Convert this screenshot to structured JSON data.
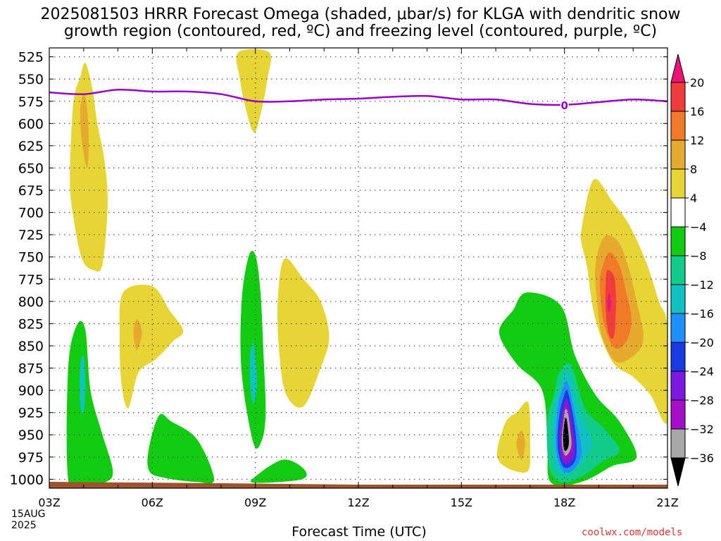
{
  "header": {
    "title_line_1": "2025081503 HRRR Forecast Omega (shaded, μbar/s) for KLGA with dendritic snow",
    "title_line_2": "growth region (contoured, red, ºC) and freezing level (contoured, purple, ºC)"
  },
  "footer": {
    "xlabel": "Forecast Time (UTC)",
    "date_line_1": "15AUG",
    "date_line_2": "2025",
    "credit": "coolwx.com/models"
  },
  "colors": {
    "freezing_level": "#9900cc",
    "ground": "#a0522d",
    "grid": "#555555"
  },
  "chart_data": {
    "type": "heatmap",
    "title": "2025081503 HRRR Forecast Omega (shaded, μbar/s) for KLGA with dendritic snow growth region (contoured, red, ºC) and freezing level (contoured, purple, ºC)",
    "xlabel": "Forecast Time (UTC)",
    "ylabel": "",
    "x_ticks": [
      "03Z",
      "06Z",
      "09Z",
      "12Z",
      "15Z",
      "18Z",
      "21Z"
    ],
    "x_range_hours": [
      3,
      21
    ],
    "y_ticks": [
      525,
      550,
      575,
      600,
      625,
      650,
      675,
      700,
      725,
      750,
      775,
      800,
      825,
      850,
      875,
      900,
      925,
      950,
      975,
      1000
    ],
    "y_range_hpa": [
      515,
      1010
    ],
    "grid": true,
    "colorbar": {
      "labels": [
        20,
        16,
        12,
        8,
        4,
        -4,
        -8,
        -12,
        -16,
        -20,
        -24,
        -28,
        -32,
        -36
      ],
      "bins": [
        {
          "color": "#ee1177"
        },
        {
          "color": "#f03c3c"
        },
        {
          "color": "#f07a28"
        },
        {
          "color": "#e6aa2e"
        },
        {
          "color": "#e6d535"
        },
        {
          "color": "#ffffff"
        },
        {
          "color": "#11cc11"
        },
        {
          "color": "#11cc8a"
        },
        {
          "color": "#11c2c2"
        },
        {
          "color": "#1e90ff"
        },
        {
          "color": "#1a3ae6"
        },
        {
          "color": "#7a1ae0"
        },
        {
          "color": "#a50fc8"
        },
        {
          "color": "#a8a8a8"
        },
        {
          "color": "#000000"
        }
      ]
    },
    "freezing_level": {
      "contour_label": "0",
      "label_at": {
        "hour": 18,
        "hpa": 579
      },
      "points": [
        {
          "hour": 3.0,
          "hpa": 565
        },
        {
          "hour": 4.0,
          "hpa": 567
        },
        {
          "hour": 5.0,
          "hpa": 562
        },
        {
          "hour": 6.0,
          "hpa": 564
        },
        {
          "hour": 7.0,
          "hpa": 564
        },
        {
          "hour": 8.0,
          "hpa": 567
        },
        {
          "hour": 9.0,
          "hpa": 575
        },
        {
          "hour": 10.0,
          "hpa": 575
        },
        {
          "hour": 11.0,
          "hpa": 573
        },
        {
          "hour": 12.0,
          "hpa": 572
        },
        {
          "hour": 13.0,
          "hpa": 570
        },
        {
          "hour": 14.0,
          "hpa": 569
        },
        {
          "hour": 15.0,
          "hpa": 573
        },
        {
          "hour": 16.0,
          "hpa": 573
        },
        {
          "hour": 17.0,
          "hpa": 578
        },
        {
          "hour": 18.0,
          "hpa": 579
        },
        {
          "hour": 19.0,
          "hpa": 576
        },
        {
          "hour": 20.0,
          "hpa": 573
        },
        {
          "hour": 21.0,
          "hpa": 575
        }
      ]
    },
    "omega_regions": [
      {
        "level": 4,
        "color": "#e6d535",
        "points": [
          [
            3.6,
            662
          ],
          [
            3.7,
            577
          ],
          [
            3.9,
            548
          ],
          [
            4.05,
            532
          ],
          [
            4.25,
            560
          ],
          [
            4.4,
            600
          ],
          [
            4.6,
            640
          ],
          [
            4.7,
            690
          ],
          [
            4.55,
            758
          ],
          [
            4.3,
            765
          ],
          [
            3.95,
            752
          ],
          [
            3.7,
            705
          ]
        ]
      },
      {
        "level": 8,
        "color": "#e6aa2e",
        "points": [
          [
            4.0,
            567
          ],
          [
            4.1,
            582
          ],
          [
            4.15,
            620
          ],
          [
            4.1,
            650
          ],
          [
            3.95,
            620
          ],
          [
            3.9,
            585
          ]
        ]
      },
      {
        "level": 4,
        "color": "#e6d535",
        "points": [
          [
            8.5,
            520
          ],
          [
            9.4,
            520
          ],
          [
            9.35,
            550
          ],
          [
            9.15,
            590
          ],
          [
            8.95,
            610
          ],
          [
            8.7,
            580
          ],
          [
            8.55,
            550
          ]
        ]
      },
      {
        "level": 4,
        "color": "#e6d535",
        "points": [
          [
            5.15,
            790
          ],
          [
            6.0,
            783
          ],
          [
            6.5,
            810
          ],
          [
            6.9,
            833
          ],
          [
            6.6,
            845
          ],
          [
            6.1,
            865
          ],
          [
            5.6,
            880
          ],
          [
            5.3,
            920
          ],
          [
            5.1,
            892
          ],
          [
            5.05,
            840
          ]
        ]
      },
      {
        "level": 8,
        "color": "#e6aa2e",
        "points": [
          [
            5.55,
            820
          ],
          [
            5.7,
            835
          ],
          [
            5.55,
            855
          ],
          [
            5.45,
            835
          ]
        ]
      },
      {
        "level": 4,
        "color": "#e6d535",
        "points": [
          [
            9.85,
            752
          ],
          [
            10.4,
            775
          ],
          [
            10.9,
            800
          ],
          [
            11.15,
            840
          ],
          [
            10.9,
            875
          ],
          [
            10.4,
            918
          ],
          [
            9.9,
            905
          ],
          [
            9.7,
            860
          ],
          [
            9.65,
            800
          ]
        ]
      },
      {
        "level": -4,
        "color": "#11cc11",
        "points": [
          [
            3.55,
            875
          ],
          [
            3.8,
            827
          ],
          [
            4.05,
            832
          ],
          [
            4.2,
            900
          ],
          [
            4.55,
            950
          ],
          [
            4.85,
            990
          ],
          [
            4.65,
            1003
          ],
          [
            4.0,
            1005
          ],
          [
            3.55,
            1000
          ]
        ]
      },
      {
        "level": -12,
        "color": "#11c2c2",
        "points": [
          [
            3.9,
            872
          ],
          [
            4.0,
            862
          ],
          [
            4.05,
            895
          ],
          [
            4.0,
            925
          ],
          [
            3.9,
            915
          ]
        ]
      },
      {
        "level": -4,
        "color": "#11cc11",
        "points": [
          [
            8.6,
            800
          ],
          [
            8.8,
            750
          ],
          [
            9.0,
            748
          ],
          [
            9.15,
            790
          ],
          [
            9.25,
            870
          ],
          [
            9.3,
            925
          ],
          [
            9.2,
            955
          ],
          [
            8.95,
            960
          ],
          [
            8.6,
            880
          ]
        ]
      },
      {
        "level": -12,
        "color": "#11c2c2",
        "points": [
          [
            8.85,
            860
          ],
          [
            8.95,
            848
          ],
          [
            9.05,
            890
          ],
          [
            8.95,
            915
          ],
          [
            8.85,
            895
          ]
        ]
      },
      {
        "level": -4,
        "color": "#11cc11",
        "points": [
          [
            5.9,
            965
          ],
          [
            6.2,
            928
          ],
          [
            6.55,
            935
          ],
          [
            7.3,
            955
          ],
          [
            7.8,
            1000
          ],
          [
            7.3,
            1003
          ],
          [
            6.3,
            998
          ],
          [
            5.9,
            990
          ]
        ]
      },
      {
        "level": -4,
        "color": "#11cc11",
        "points": [
          [
            9.0,
            997
          ],
          [
            9.8,
            978
          ],
          [
            10.4,
            988
          ],
          [
            10.35,
            1000
          ],
          [
            9.0,
            1004
          ]
        ]
      },
      {
        "level": -4,
        "color": "#11cc11",
        "points": [
          [
            16.1,
            835
          ],
          [
            16.5,
            810
          ],
          [
            16.9,
            790
          ],
          [
            17.9,
            805
          ],
          [
            18.3,
            860
          ],
          [
            18.9,
            905
          ],
          [
            19.6,
            935
          ],
          [
            20.1,
            975
          ],
          [
            19.4,
            985
          ],
          [
            18.7,
            1000
          ],
          [
            18.0,
            1007
          ],
          [
            17.55,
            1000
          ],
          [
            17.5,
            960
          ],
          [
            17.35,
            900
          ],
          [
            16.6,
            870
          ]
        ]
      },
      {
        "level": -8,
        "color": "#11cc8a",
        "points": [
          [
            17.55,
            985
          ],
          [
            17.5,
            935
          ],
          [
            17.7,
            905
          ],
          [
            17.85,
            880
          ],
          [
            18.2,
            872
          ],
          [
            18.6,
            920
          ],
          [
            19.2,
            945
          ],
          [
            19.6,
            968
          ],
          [
            19.1,
            980
          ],
          [
            18.5,
            997
          ],
          [
            17.9,
            1003
          ]
        ]
      },
      {
        "level": -12,
        "color": "#11c2c2",
        "points": [
          [
            17.65,
            970
          ],
          [
            17.7,
            920
          ],
          [
            17.9,
            895
          ],
          [
            18.1,
            878
          ],
          [
            18.45,
            925
          ],
          [
            18.8,
            960
          ],
          [
            18.4,
            985
          ],
          [
            17.9,
            995
          ]
        ]
      },
      {
        "level": -16,
        "color": "#1e90ff",
        "points": [
          [
            17.75,
            965
          ],
          [
            17.8,
            920
          ],
          [
            17.95,
            898
          ],
          [
            18.1,
            892
          ],
          [
            18.35,
            935
          ],
          [
            18.5,
            970
          ],
          [
            18.25,
            990
          ],
          [
            17.95,
            990
          ]
        ]
      },
      {
        "level": -20,
        "color": "#1a3ae6",
        "points": [
          [
            17.8,
            962
          ],
          [
            17.85,
            928
          ],
          [
            18.0,
            905
          ],
          [
            18.1,
            902
          ],
          [
            18.3,
            940
          ],
          [
            18.35,
            972
          ],
          [
            18.2,
            985
          ],
          [
            17.95,
            985
          ]
        ]
      },
      {
        "level": -24,
        "color": "#7a1ae0",
        "points": [
          [
            17.85,
            958
          ],
          [
            17.9,
            935
          ],
          [
            18.0,
            913
          ],
          [
            18.1,
            912
          ],
          [
            18.25,
            942
          ],
          [
            18.3,
            970
          ],
          [
            18.15,
            982
          ],
          [
            17.95,
            980
          ]
        ]
      },
      {
        "level": -28,
        "color": "#a50fc8",
        "points": [
          [
            17.9,
            957
          ],
          [
            17.95,
            935
          ],
          [
            18.0,
            918
          ],
          [
            18.1,
            918
          ],
          [
            18.2,
            945
          ],
          [
            18.25,
            966
          ],
          [
            18.1,
            978
          ],
          [
            17.95,
            975
          ]
        ]
      },
      {
        "level": -32,
        "color": "#a8a8a8",
        "points": [
          [
            17.92,
            955
          ],
          [
            17.97,
            935
          ],
          [
            18.02,
            922
          ],
          [
            18.1,
            925
          ],
          [
            18.18,
            948
          ],
          [
            18.2,
            963
          ],
          [
            18.07,
            973
          ],
          [
            17.97,
            970
          ]
        ]
      },
      {
        "level": -36,
        "color": "#000000",
        "points": [
          [
            17.96,
            952
          ],
          [
            18.0,
            935
          ],
          [
            18.06,
            932
          ],
          [
            18.12,
            950
          ],
          [
            18.12,
            962
          ],
          [
            18.04,
            968
          ],
          [
            17.98,
            965
          ]
        ]
      },
      {
        "level": 4,
        "color": "#e6d535",
        "points": [
          [
            16.05,
            965
          ],
          [
            16.3,
            935
          ],
          [
            16.6,
            925
          ],
          [
            16.95,
            914
          ],
          [
            17.0,
            960
          ],
          [
            16.95,
            990
          ],
          [
            16.5,
            990
          ],
          [
            16.1,
            980
          ]
        ]
      },
      {
        "level": 8,
        "color": "#e6aa2e",
        "points": [
          [
            16.6,
            960
          ],
          [
            16.75,
            945
          ],
          [
            16.85,
            960
          ],
          [
            16.75,
            978
          ]
        ]
      },
      {
        "level": 4,
        "color": "#e6d535",
        "points": [
          [
            18.5,
            718
          ],
          [
            18.85,
            663
          ],
          [
            19.4,
            688
          ],
          [
            19.9,
            715
          ],
          [
            20.4,
            758
          ],
          [
            20.75,
            800
          ],
          [
            21.0,
            830
          ],
          [
            21.0,
            935
          ],
          [
            20.5,
            905
          ],
          [
            20.0,
            885
          ],
          [
            19.4,
            868
          ],
          [
            18.9,
            820
          ],
          [
            18.65,
            760
          ],
          [
            18.5,
            735
          ]
        ]
      },
      {
        "level": 8,
        "color": "#e6aa2e",
        "points": [
          [
            18.9,
            760
          ],
          [
            19.15,
            728
          ],
          [
            19.55,
            732
          ],
          [
            19.85,
            760
          ],
          [
            20.1,
            800
          ],
          [
            20.3,
            840
          ],
          [
            20.05,
            860
          ],
          [
            19.5,
            868
          ],
          [
            19.1,
            840
          ],
          [
            18.95,
            800
          ]
        ]
      },
      {
        "level": 12,
        "color": "#f07a28",
        "points": [
          [
            19.05,
            770
          ],
          [
            19.3,
            745
          ],
          [
            19.6,
            760
          ],
          [
            19.8,
            790
          ],
          [
            19.95,
            820
          ],
          [
            19.8,
            845
          ],
          [
            19.45,
            852
          ],
          [
            19.15,
            825
          ],
          [
            19.05,
            795
          ]
        ]
      },
      {
        "level": 16,
        "color": "#f03c3c",
        "points": [
          [
            19.25,
            765
          ],
          [
            19.45,
            773
          ],
          [
            19.5,
            800
          ],
          [
            19.45,
            838
          ],
          [
            19.3,
            838
          ],
          [
            19.2,
            810
          ],
          [
            19.2,
            780
          ]
        ]
      },
      {
        "level": 20,
        "color": "#ee1177",
        "points": [
          [
            19.3,
            790
          ],
          [
            19.35,
            803
          ],
          [
            19.3,
            812
          ],
          [
            19.25,
            803
          ]
        ]
      }
    ]
  }
}
